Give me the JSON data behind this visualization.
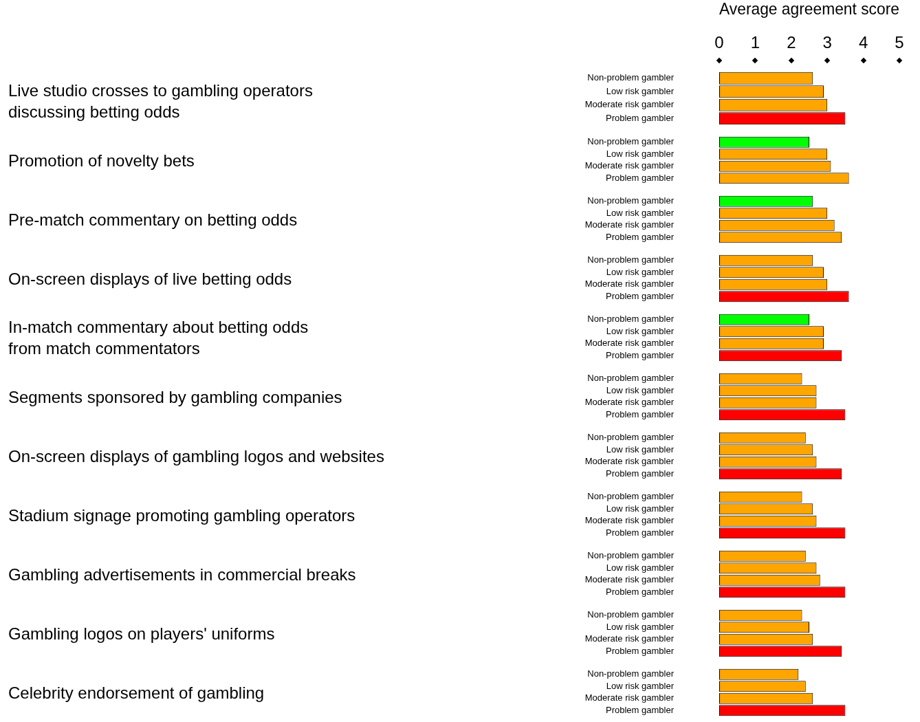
{
  "chart_data": [
    {
      "type": "bar",
      "orientation": "horizontal",
      "ylabel": "Live studio crosses to gambling operators\ndiscussing betting odds",
      "xlabel": "Average agreement score",
      "categories": [
        "Non-problem gambler",
        "Low risk gambler",
        "Moderate risk gambler",
        "Problem gambler"
      ],
      "values": [
        2.6,
        2.9,
        3.0,
        3.5
      ],
      "colors": [
        "#ffa500",
        "#ffa500",
        "#ffa500",
        "#ff0000"
      ],
      "xlim": [
        0,
        5
      ],
      "xticks": [
        0,
        1,
        2,
        3,
        4,
        5
      ]
    },
    {
      "type": "bar",
      "orientation": "horizontal",
      "ylabel": "Promotion of novelty bets",
      "categories": [
        "Non-problem gambler",
        "Low risk gambler",
        "Moderate risk gambler",
        "Problem gambler"
      ],
      "values": [
        2.5,
        3.0,
        3.1,
        3.6
      ],
      "colors": [
        "#00ff00",
        "#ffa500",
        "#ffa500",
        "#ffa500"
      ],
      "xlim": [
        0,
        5
      ],
      "tick_labels": "y"
    },
    {
      "type": "bar",
      "orientation": "horizontal",
      "ylabel": "Pre-match commentary on betting odds",
      "categories": [
        "Non-problem gambler",
        "Low risk gambler",
        "Moderate risk gambler",
        "Problem gambler"
      ],
      "values": [
        2.6,
        3.0,
        3.2,
        3.4
      ],
      "colors": [
        "#00ff00",
        "#ffa500",
        "#ffa500",
        "#ffa500"
      ],
      "xlim": [
        0,
        5
      ],
      "tick_labels": "y"
    },
    {
      "type": "bar",
      "orientation": "horizontal",
      "ylabel": "On-screen displays of live betting odds",
      "categories": [
        "Non-problem gambler",
        "Low risk gambler",
        "Moderate risk gambler",
        "Problem gambler"
      ],
      "values": [
        2.6,
        2.9,
        3.0,
        3.6
      ],
      "colors": [
        "#ffa500",
        "#ffa500",
        "#ffa500",
        "#ff0000"
      ],
      "xlim": [
        0,
        5
      ],
      "tick_labels": "y"
    },
    {
      "type": "bar",
      "orientation": "horizontal",
      "ylabel": "In-match commentary about betting odds\nfrom match commentators",
      "categories": [
        "Non-problem gambler",
        "Low risk gambler",
        "Moderate risk gambler",
        "Problem gambler"
      ],
      "values": [
        2.5,
        2.9,
        2.9,
        3.4
      ],
      "colors": [
        "#00ff00",
        "#ffa500",
        "#ffa500",
        "#ff0000"
      ],
      "xlim": [
        0,
        5
      ],
      "tick_labels": "y"
    },
    {
      "type": "bar",
      "orientation": "horizontal",
      "ylabel": "Segments sponsored by gambling companies",
      "categories": [
        "Non-problem gambler",
        "Low risk gambler",
        "Moderate risk gambler",
        "Problem gambler"
      ],
      "values": [
        2.3,
        2.7,
        2.7,
        3.5
      ],
      "colors": [
        "#ffa500",
        "#ffa500",
        "#ffa500",
        "#ff0000"
      ],
      "xlim": [
        0,
        5
      ],
      "tick_labels": "y"
    },
    {
      "type": "bar",
      "orientation": "horizontal",
      "ylabel": "On-screen displays of gambling logos and websites",
      "categories": [
        "Non-problem gambler",
        "Low risk gambler",
        "Moderate risk gambler",
        "Problem gambler"
      ],
      "values": [
        2.4,
        2.6,
        2.7,
        3.4
      ],
      "colors": [
        "#ffa500",
        "#ffa500",
        "#ffa500",
        "#ff0000"
      ],
      "xlim": [
        0,
        5
      ],
      "tick_labels": "y"
    },
    {
      "type": "bar",
      "orientation": "horizontal",
      "ylabel": "Stadium signage promoting gambling operators",
      "categories": [
        "Non-problem gambler",
        "Low risk gambler",
        "Moderate risk gambler",
        "Problem gambler"
      ],
      "values": [
        2.3,
        2.6,
        2.7,
        3.5
      ],
      "colors": [
        "#ffa500",
        "#ffa500",
        "#ffa500",
        "#ff0000"
      ],
      "xlim": [
        0,
        5
      ],
      "tick_labels": "y"
    },
    {
      "type": "bar",
      "orientation": "horizontal",
      "ylabel": "Gambling advertisements in commercial breaks",
      "categories": [
        "Non-problem gambler",
        "Low risk gambler",
        "Moderate risk gambler",
        "Problem gambler"
      ],
      "values": [
        2.4,
        2.7,
        2.8,
        3.5
      ],
      "colors": [
        "#ffa500",
        "#ffa500",
        "#ffa500",
        "#ff0000"
      ],
      "xlim": [
        0,
        5
      ],
      "tick_labels": "y"
    },
    {
      "type": "bar",
      "orientation": "horizontal",
      "ylabel": "Gambling logos on players' uniforms",
      "categories": [
        "Non-problem gambler",
        "Low risk gambler",
        "Moderate risk gambler",
        "Problem gambler"
      ],
      "values": [
        2.3,
        2.5,
        2.6,
        3.4
      ],
      "colors": [
        "#ffa500",
        "#ffa500",
        "#ffa500",
        "#ff0000"
      ],
      "xlim": [
        0,
        5
      ],
      "tick_labels": "y"
    },
    {
      "type": "bar",
      "orientation": "horizontal",
      "ylabel": "Celebrity endorsement of gambling",
      "categories": [
        "Non-problem gambler",
        "Low risk gambler",
        "Moderate risk gambler",
        "Problem gambler"
      ],
      "values": [
        2.2,
        2.4,
        2.6,
        3.5
      ],
      "colors": [
        "#ffa500",
        "#ffa500",
        "#ffa500",
        "#ff0000"
      ],
      "xlim": [
        0,
        5
      ],
      "tick_labels": "y"
    }
  ]
}
